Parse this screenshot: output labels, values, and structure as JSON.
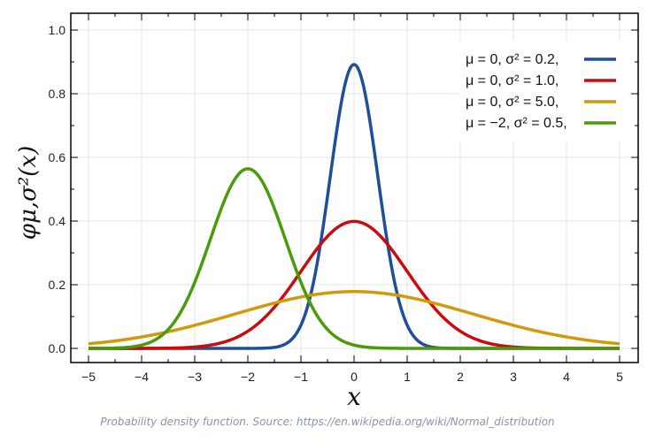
{
  "chart_data": {
    "type": "line",
    "xlabel": "x",
    "ylabel": "φμ,σ²(x)",
    "xlim": [
      -5,
      5
    ],
    "ylim": [
      0,
      1.0
    ],
    "x_ticks": [
      "−5",
      "−4",
      "−3",
      "−2",
      "−1",
      "0",
      "1",
      "2",
      "3",
      "4",
      "5"
    ],
    "y_ticks": [
      "0.0",
      "0.2",
      "0.4",
      "0.6",
      "0.8",
      "1.0"
    ],
    "grid": true,
    "legend_position": "top-right",
    "series": [
      {
        "name": "μ = 0,    σ² = 0.2,",
        "mu": 0,
        "sigma2": 0.2,
        "color": "#1f4e9a"
      },
      {
        "name": "μ = 0,    σ² = 1.0,",
        "mu": 0,
        "sigma2": 1.0,
        "color": "#cc0c0c"
      },
      {
        "name": "μ = 0,    σ² = 5.0,",
        "mu": 0,
        "sigma2": 5.0,
        "color": "#d29a0a"
      },
      {
        "name": "μ = −2,  σ² = 0.5,",
        "mu": -2,
        "sigma2": 0.5,
        "color": "#4a9a0c"
      }
    ]
  },
  "caption": "Probability density function. Source: https://en.wikipedia.org/wiki/Normal_distribution"
}
